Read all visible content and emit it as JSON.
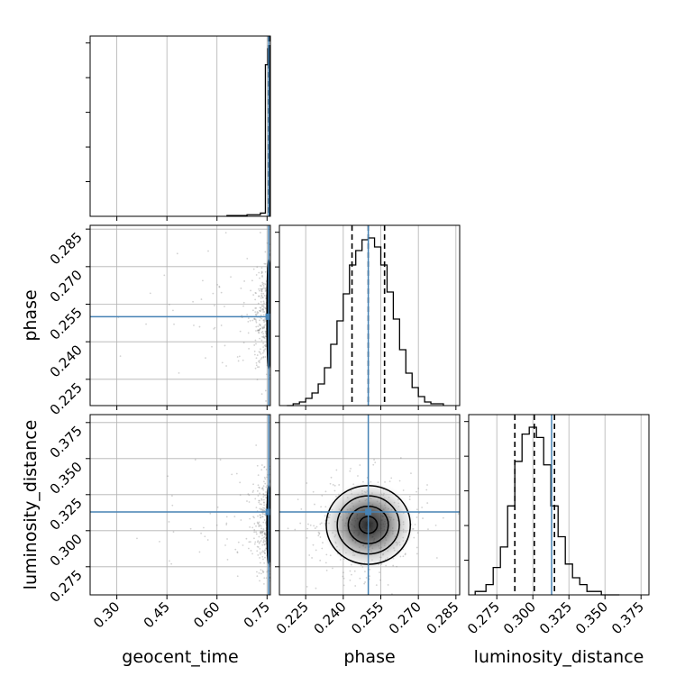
{
  "colors": {
    "truth": "#4682b4",
    "hist": "#000000",
    "grid": "#b0b0b0",
    "contour": "#000000",
    "samples": "#7f7f7f"
  },
  "chart_data": {
    "type": "corner",
    "parameters": [
      "geocent_time",
      "phase",
      "luminosity_distance"
    ],
    "axis_ranges": {
      "geocent_time": [
        0.22,
        0.76
      ],
      "phase": [
        0.2145,
        0.2865
      ],
      "luminosity_distance": [
        0.2555,
        0.3805
      ]
    },
    "ticks": {
      "geocent_time": [
        "0.30",
        "0.45",
        "0.60",
        "0.75"
      ],
      "phase": [
        "0.225",
        "0.240",
        "0.255",
        "0.270",
        "0.285"
      ],
      "luminosity_distance": [
        "0.275",
        "0.300",
        "0.325",
        "0.350",
        "0.375"
      ]
    },
    "truth": {
      "geocent_time": 0.755,
      "phase": 0.25,
      "luminosity_distance": 0.313
    },
    "quantiles": {
      "geocent_time": [
        0.7545,
        0.7555,
        0.7565
      ],
      "phase": [
        0.2435,
        0.25,
        0.2565
      ],
      "luminosity_distance": [
        0.2875,
        0.301,
        0.315
      ]
    },
    "histograms": {
      "geocent_time": {
        "edges": [
          0.63,
          0.65,
          0.67,
          0.69,
          0.71,
          0.73,
          0.745,
          0.7525,
          0.7575
        ],
        "counts": [
          1,
          1,
          1,
          2,
          2,
          4,
          190,
          210
        ]
      },
      "phase": {
        "edges": [
          0.2175,
          0.22,
          0.2225,
          0.225,
          0.2275,
          0.23,
          0.2325,
          0.235,
          0.2375,
          0.24,
          0.2425,
          0.245,
          0.2475,
          0.25,
          0.2525,
          0.255,
          0.2575,
          0.26,
          0.2625,
          0.265,
          0.2675,
          0.27,
          0.2725,
          0.275,
          0.2775,
          0.28
        ],
        "counts": [
          0,
          1,
          2,
          4,
          7,
          12,
          21,
          34,
          47,
          62,
          78,
          86,
          92,
          93,
          88,
          78,
          63,
          48,
          31,
          18,
          10,
          5,
          2,
          1,
          1
        ]
      },
      "luminosity_distance": {
        "edges": [
          0.26,
          0.2675,
          0.2725,
          0.2775,
          0.2825,
          0.2875,
          0.2925,
          0.2975,
          0.3025,
          0.3075,
          0.3125,
          0.3175,
          0.3225,
          0.3275,
          0.3325,
          0.3375,
          0.3425,
          0.3475,
          0.3525,
          0.36
        ],
        "counts": [
          1,
          3,
          8,
          14,
          26,
          39,
          47,
          49,
          46,
          38,
          26,
          17,
          9,
          5,
          3,
          1,
          1,
          0,
          0
        ]
      }
    },
    "pairs": [
      {
        "x": "geocent_time",
        "y": "phase",
        "center": [
          0.755,
          0.251
        ],
        "spread": [
          0.0025,
          0.0105
        ],
        "scatter_center": [
          0.745,
          0.25
        ],
        "scatter_spread": [
          0.07,
          0.012
        ]
      },
      {
        "x": "geocent_time",
        "y": "luminosity_distance",
        "center": [
          0.755,
          0.304
        ],
        "spread": [
          0.0025,
          0.013
        ],
        "scatter_center": [
          0.745,
          0.305
        ],
        "scatter_spread": [
          0.07,
          0.018
        ]
      },
      {
        "x": "phase",
        "y": "luminosity_distance",
        "center": [
          0.25,
          0.304
        ],
        "spread": [
          0.008,
          0.013
        ],
        "scatter_center": [
          0.25,
          0.304
        ],
        "scatter_spread": [
          0.012,
          0.018
        ]
      }
    ]
  }
}
